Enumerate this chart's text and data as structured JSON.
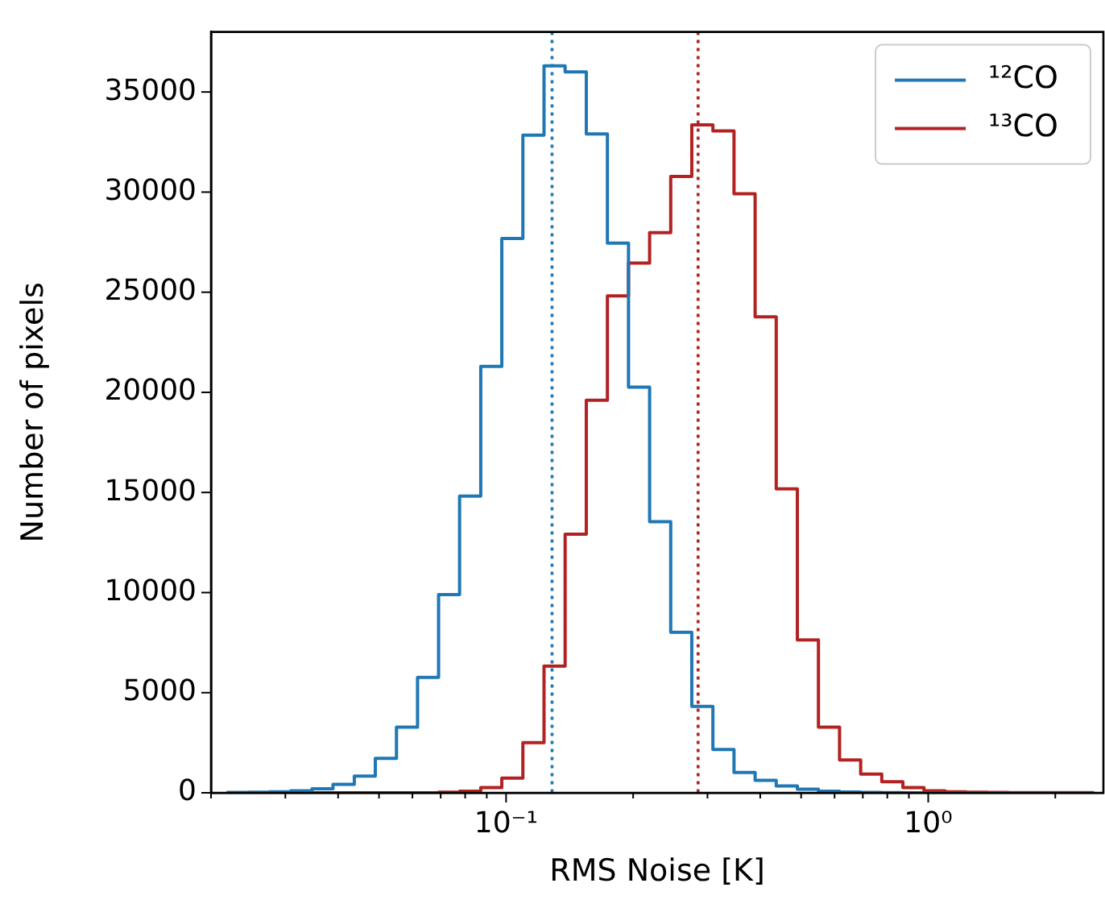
{
  "chart_data": {
    "type": "histogram",
    "xlabel": "RMS Noise [K]",
    "ylabel": "Number of pixels",
    "log": "x",
    "bins": [
      0.0219,
      0.0245,
      0.0275,
      0.0309,
      0.0347,
      0.0389,
      0.0437,
      0.049,
      0.055,
      0.0617,
      0.0692,
      0.0776,
      0.0871,
      0.0977,
      0.1096,
      0.123,
      0.138,
      0.1549,
      0.1738,
      0.195,
      0.2188,
      0.2455,
      0.2754,
      0.309,
      0.3467,
      0.389,
      0.4365,
      0.4898,
      0.5495,
      0.6166,
      0.6918,
      0.7762,
      0.871,
      0.9772,
      1.0965,
      1.2303,
      1.3804,
      1.5488,
      1.7378,
      1.9498,
      2.1878,
      2.4547
    ],
    "series": [
      {
        "name": "¹²CO",
        "color": "#1f77b4",
        "values": [
          20,
          30,
          50,
          100,
          200,
          420,
          830,
          1720,
          3280,
          5760,
          9900,
          14820,
          21300,
          27680,
          32840,
          36300,
          36000,
          32900,
          27450,
          20260,
          13540,
          8020,
          4320,
          2160,
          1020,
          620,
          340,
          180,
          80,
          40,
          20,
          10,
          0,
          0,
          0,
          0,
          0,
          0,
          0,
          0,
          0
        ]
      },
      {
        "name": "¹³CO",
        "color": "#b22222",
        "values": [
          0,
          0,
          0,
          0,
          0,
          0,
          0,
          0,
          0,
          0,
          30,
          80,
          260,
          730,
          2500,
          6330,
          12920,
          19610,
          24820,
          26460,
          27970,
          30780,
          33360,
          33050,
          29920,
          23770,
          15180,
          7630,
          3280,
          1640,
          940,
          550,
          260,
          100,
          50,
          30,
          20,
          10,
          10,
          10,
          10
        ]
      }
    ],
    "xlim": [
      0.02,
      2.6
    ],
    "xticks": [
      {
        "value": 0.02,
        "label": null
      },
      {
        "value": 0.03,
        "label": null
      },
      {
        "value": 0.04,
        "label": null
      },
      {
        "value": 0.05,
        "label": null
      },
      {
        "value": 0.06,
        "label": null
      },
      {
        "value": 0.07,
        "label": null
      },
      {
        "value": 0.08,
        "label": null
      },
      {
        "value": 0.09,
        "label": null
      },
      {
        "value": 0.1,
        "label": "10⁻¹"
      },
      {
        "value": 0.2,
        "label": null
      },
      {
        "value": 0.3,
        "label": null
      },
      {
        "value": 0.4,
        "label": null
      },
      {
        "value": 0.5,
        "label": null
      },
      {
        "value": 0.6,
        "label": null
      },
      {
        "value": 0.7,
        "label": null
      },
      {
        "value": 0.8,
        "label": null
      },
      {
        "value": 0.9,
        "label": null
      },
      {
        "value": 1,
        "label": "10⁰"
      },
      {
        "value": 2,
        "label": null
      }
    ],
    "ylim": [
      0,
      38000
    ],
    "yticks": [
      0,
      5000,
      10000,
      15000,
      20000,
      25000,
      30000,
      35000
    ],
    "ref_lines": [
      {
        "axis": "x",
        "value": 0.1285,
        "color": "#1f77b4",
        "line_style": "dotted"
      },
      {
        "axis": "x",
        "value": 0.285,
        "color": "#b22222",
        "line_style": "dotted"
      }
    ],
    "grid": false,
    "legend": "top right"
  }
}
